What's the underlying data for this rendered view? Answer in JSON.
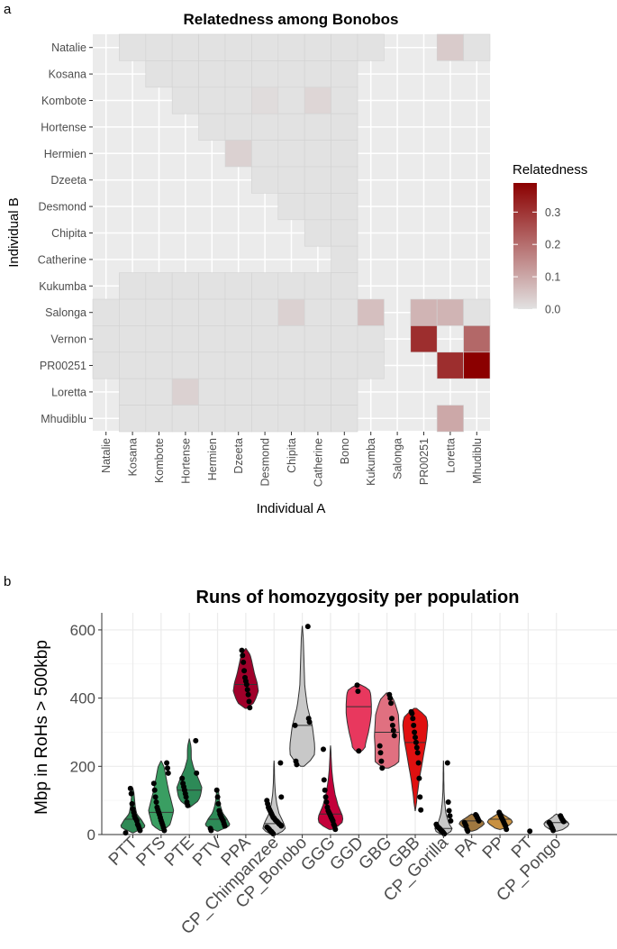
{
  "chart_data": [
    {
      "panel_label": "a",
      "type": "heatmap",
      "title": "Relatedness among Bonobos",
      "xlabel": "Individual A",
      "ylabel": "Individual B",
      "x_categories": [
        "Natalie",
        "Kosana",
        "Kombote",
        "Hortense",
        "Hermien",
        "Dzeeta",
        "Desmond",
        "Chipita",
        "Catherine",
        "Bono",
        "Kukumba",
        "Salonga",
        "PR00251",
        "Loretta",
        "Mhudiblu"
      ],
      "y_categories": [
        "Natalie",
        "Kosana",
        "Kombote",
        "Hortense",
        "Hermien",
        "Dzeeta",
        "Desmond",
        "Chipita",
        "Catherine",
        "Kukumba",
        "Salonga",
        "Vernon",
        "PR00251",
        "Loretta",
        "Mhudiblu"
      ],
      "legend": {
        "title": "Relatedness",
        "ticks": [
          "0.0",
          "0.1",
          "0.2",
          "0.3"
        ],
        "min": 0,
        "max": 0.39,
        "color_low": "#e2e2e2",
        "color_high": "#8b0000",
        "placement": "right"
      },
      "default_value": 0,
      "tiles": [
        {
          "row": "Natalie",
          "from": 1,
          "to": 10
        },
        {
          "row": "Kosana",
          "from": 2,
          "to": 9
        },
        {
          "row": "Kombote",
          "from": 3,
          "to": 9
        },
        {
          "row": "Hortense",
          "from": 4,
          "to": 9
        },
        {
          "row": "Hermien",
          "from": 5,
          "to": 9
        },
        {
          "row": "Dzeeta",
          "from": 6,
          "to": 9
        },
        {
          "row": "Desmond",
          "from": 7,
          "to": 9
        },
        {
          "row": "Chipita",
          "from": 8,
          "to": 9
        },
        {
          "row": "Catherine",
          "from": 9,
          "to": 9
        },
        {
          "row": "Kukumba",
          "from": 1,
          "to": 9
        },
        {
          "row": "Salonga",
          "from": 0,
          "to": 10
        },
        {
          "row": "Vernon",
          "from": 0,
          "to": 10
        },
        {
          "row": "PR00251",
          "from": 0,
          "to": 10
        },
        {
          "row": "Loretta",
          "from": 1,
          "to": 9
        },
        {
          "row": "Mhudiblu",
          "from": 1,
          "to": 9
        }
      ],
      "highlights": [
        {
          "x": "Loretta",
          "y": "Natalie",
          "value": 0.04
        },
        {
          "x": "Mhudiblu",
          "y": "Natalie",
          "value": 0
        },
        {
          "x": "Desmond",
          "y": "Kombote",
          "value": 0.01
        },
        {
          "x": "Catherine",
          "y": "Kombote",
          "value": 0.02
        },
        {
          "x": "Dzeeta",
          "y": "Hermien",
          "value": 0.03
        },
        {
          "x": "Chipita",
          "y": "Salonga",
          "value": 0.03
        },
        {
          "x": "Kukumba",
          "y": "Salonga",
          "value": 0.06
        },
        {
          "x": "PR00251",
          "y": "Salonga",
          "value": 0.08
        },
        {
          "x": "Loretta",
          "y": "Salonga",
          "value": 0.08
        },
        {
          "x": "Mhudiblu",
          "y": "Salonga",
          "value": 0
        },
        {
          "x": "PR00251",
          "y": "Vernon",
          "value": 0.31
        },
        {
          "x": "Mhudiblu",
          "y": "Vernon",
          "value": 0.21
        },
        {
          "x": "Loretta",
          "y": "PR00251",
          "value": 0.31
        },
        {
          "x": "Mhudiblu",
          "y": "PR00251",
          "value": 0.39
        },
        {
          "x": "Hortense",
          "y": "Loretta",
          "value": 0.03
        },
        {
          "x": "Loretta",
          "y": "Mhudiblu",
          "value": 0.1
        }
      ]
    },
    {
      "panel_label": "b",
      "type": "violin",
      "title": "Runs of homozygosity per population",
      "xlabel": "",
      "ylabel": "Mbp in RoHs > 500kbp",
      "ylim": [
        0,
        650
      ],
      "yticks": [
        0,
        200,
        400,
        600
      ],
      "categories": [
        "PTT",
        "PTS",
        "PTE",
        "PTV",
        "PPA",
        "CP_Chimpanzee",
        "CP_Bonobo",
        "GGG",
        "GGD",
        "GBG",
        "GBB",
        "CP_Gorilla",
        "PA",
        "PP",
        "PT",
        "CP_Pongo"
      ],
      "groups": [
        {
          "name": "PTT",
          "color": "#2f8a55",
          "min": 5,
          "max": 135,
          "median": 45,
          "shape": [
            0.25,
            1,
            0.7,
            0.3,
            0.2,
            0.15,
            0.1,
            0.05
          ],
          "points": [
            5,
            12,
            18,
            25,
            30,
            40,
            45,
            48,
            55,
            65,
            75,
            90,
            120,
            135
          ]
        },
        {
          "name": "PTS",
          "color": "#3a9e62",
          "min": 12,
          "max": 215,
          "median": 65,
          "shape": [
            0.55,
            0.8,
            1,
            0.8,
            0.6,
            0.45,
            0.3,
            0.15
          ],
          "points": [
            12,
            20,
            28,
            35,
            42,
            50,
            58,
            65,
            72,
            80,
            95,
            110,
            130,
            150,
            180,
            195,
            210
          ]
        },
        {
          "name": "PTE",
          "color": "#2d8a57",
          "min": 80,
          "max": 280,
          "median": 130,
          "shape": [
            0.35,
            0.85,
            1,
            0.7,
            0.35,
            0.15,
            0.15,
            0.05
          ],
          "points": [
            85,
            95,
            110,
            120,
            130,
            140,
            150,
            165,
            180,
            275
          ]
        },
        {
          "name": "PTV",
          "color": "#2d8a57",
          "min": 10,
          "max": 135,
          "median": 45,
          "shape": [
            0.3,
            1,
            0.75,
            0.4,
            0.25,
            0.15,
            0.1,
            0.05
          ],
          "points": [
            12,
            18,
            25,
            32,
            40,
            45,
            50,
            55,
            60,
            70,
            90,
            110,
            130
          ]
        },
        {
          "name": "PPA",
          "color": "#a0002a",
          "min": 370,
          "max": 545,
          "median": 440,
          "shape": [
            0.35,
            0.75,
            1,
            0.9,
            0.7,
            0.55,
            0.4,
            0.15
          ],
          "points": [
            372,
            390,
            410,
            425,
            440,
            450,
            460,
            480,
            505,
            525,
            540
          ]
        },
        {
          "name": "CP_Chimpanzee",
          "color": "#c8c8c8",
          "min": 0,
          "max": 215,
          "median": 32,
          "shape": [
            1,
            0.8,
            0.4,
            0.2,
            0.1,
            0.05,
            0.03,
            0.02
          ],
          "points": [
            2,
            5,
            8,
            10,
            12,
            15,
            18,
            20,
            22,
            25,
            28,
            30,
            32,
            35,
            38,
            40,
            42,
            45,
            48,
            50,
            55,
            60,
            65,
            70,
            75,
            80,
            90,
            100,
            110,
            210
          ]
        },
        {
          "name": "CP_Bonobo",
          "color": "#c8c8c8",
          "min": 200,
          "max": 610,
          "median": 320,
          "shape": [
            0.9,
            1,
            0.8,
            0.4,
            0.2,
            0.15,
            0.1,
            0.05
          ],
          "points": [
            205,
            215,
            320,
            330,
            340,
            610
          ]
        },
        {
          "name": "GGG",
          "color": "#c3003a",
          "min": 15,
          "max": 260,
          "median": 60,
          "shape": [
            0.8,
            1,
            0.6,
            0.35,
            0.2,
            0.1,
            0.05,
            0.03
          ],
          "points": [
            15,
            25,
            30,
            40,
            45,
            50,
            55,
            60,
            65,
            70,
            80,
            95,
            110,
            130,
            160,
            250
          ]
        },
        {
          "name": "GGD",
          "color": "#e8385e",
          "min": 240,
          "max": 440,
          "median": 375,
          "shape": [
            0.45,
            0.55,
            0.75,
            0.9,
            1,
            1,
            0.95,
            0.7
          ],
          "points": [
            245,
            420,
            438
          ]
        },
        {
          "name": "GBG",
          "color": "#e07080",
          "min": 195,
          "max": 415,
          "median": 300,
          "shape": [
            0.9,
            0.95,
            0.95,
            1,
            0.95,
            0.9,
            0.65,
            0.3
          ],
          "points": [
            195,
            215,
            240,
            260,
            290,
            305,
            320,
            340,
            385,
            400,
            410
          ]
        },
        {
          "name": "GBB",
          "color": "#e01010",
          "min": 70,
          "max": 370,
          "median": 270,
          "shape": [
            0.05,
            0.15,
            0.3,
            0.5,
            0.7,
            0.9,
            1,
            0.65
          ],
          "points": [
            72,
            110,
            165,
            210,
            240,
            255,
            270,
            285,
            300,
            320,
            340,
            355,
            360
          ]
        },
        {
          "name": "CP_Gorilla",
          "color": "#c8c8c8",
          "min": 0,
          "max": 215,
          "median": 18,
          "shape": [
            1,
            0.45,
            0.2,
            0.1,
            0.05,
            0.03,
            0.02,
            0.02
          ],
          "points": [
            2,
            5,
            8,
            10,
            12,
            15,
            18,
            20,
            22,
            25,
            30,
            40,
            55,
            70,
            95,
            210
          ]
        },
        {
          "name": "PA",
          "color": "#a07840",
          "min": 10,
          "max": 60,
          "median": 40,
          "shape": [
            0.3,
            0.5,
            0.8,
            1,
            0.9,
            0.6,
            0.3,
            0.1
          ],
          "points": [
            10,
            15,
            25,
            30,
            35,
            40,
            45,
            50,
            55,
            58
          ]
        },
        {
          "name": "PP",
          "color": "#c89040",
          "min": 15,
          "max": 65,
          "median": 45,
          "shape": [
            0.3,
            0.5,
            0.8,
            1,
            0.9,
            0.6,
            0.3,
            0.1
          ],
          "points": [
            15,
            25,
            30,
            35,
            40,
            45,
            50,
            55,
            60,
            65
          ]
        },
        {
          "name": "PT",
          "color": "#c8a050",
          "min": null,
          "max": null,
          "median": null,
          "shape": [],
          "points": [
            10
          ]
        },
        {
          "name": "CP_Pongo",
          "color": "#c8c8c8",
          "min": 10,
          "max": 60,
          "median": 35,
          "shape": [
            0.3,
            0.6,
            0.9,
            1,
            0.85,
            0.5,
            0.25,
            0.1
          ],
          "points": [
            12,
            18,
            22,
            28,
            32,
            35,
            38,
            42,
            45,
            50,
            55
          ]
        }
      ]
    }
  ]
}
